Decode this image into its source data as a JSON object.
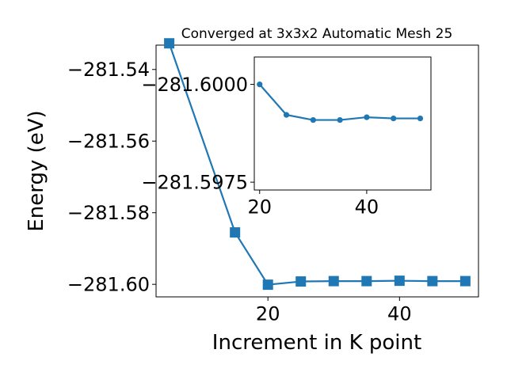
{
  "chart_data": [
    {
      "type": "line",
      "title": "Converged at 3x3x2 Automatic Mesh 25",
      "xlabel": "Increment in K point",
      "ylabel": "Energy (eV)",
      "xlim": [
        3,
        52
      ],
      "ylim": [
        -281.6035,
        -281.5332
      ],
      "xticks": [
        20,
        40
      ],
      "yticks": [
        -281.54,
        -281.56,
        -281.58,
        -281.6
      ],
      "ytick_labels": [
        "−281.54",
        "−281.56",
        "−281.58",
        "−281.60"
      ],
      "xtick_labels": [
        "20",
        "40"
      ],
      "marker": "square",
      "color": "#1f77b4",
      "grid": false,
      "series": [
        {
          "x": [
            5,
            15,
            20,
            25,
            30,
            35,
            40,
            45,
            50
          ],
          "y": [
            -281.5327,
            -281.5855,
            -281.6001,
            -281.5992,
            -281.5991,
            -281.5991,
            -281.599,
            -281.5991,
            -281.5991
          ]
        }
      ]
    },
    {
      "type": "line",
      "title": "",
      "xlabel": "",
      "ylabel": "",
      "xlim": [
        19,
        52
      ],
      "ylim": [
        -281.5973,
        -281.6007
      ],
      "xticks": [
        20,
        40
      ],
      "yticks": [
        -281.6,
        -281.5975
      ],
      "ytick_labels": [
        "−281.6000",
        "−281.5975"
      ],
      "xtick_labels": [
        "20",
        "40"
      ],
      "marker": "circle",
      "color": "#1f77b4",
      "grid": false,
      "series": [
        {
          "x": [
            20,
            25,
            30,
            35,
            40,
            45,
            50
          ],
          "y": [
            -281.6,
            -281.59922,
            -281.59909,
            -281.59909,
            -281.59916,
            -281.59913,
            -281.59913
          ]
        }
      ]
    }
  ]
}
